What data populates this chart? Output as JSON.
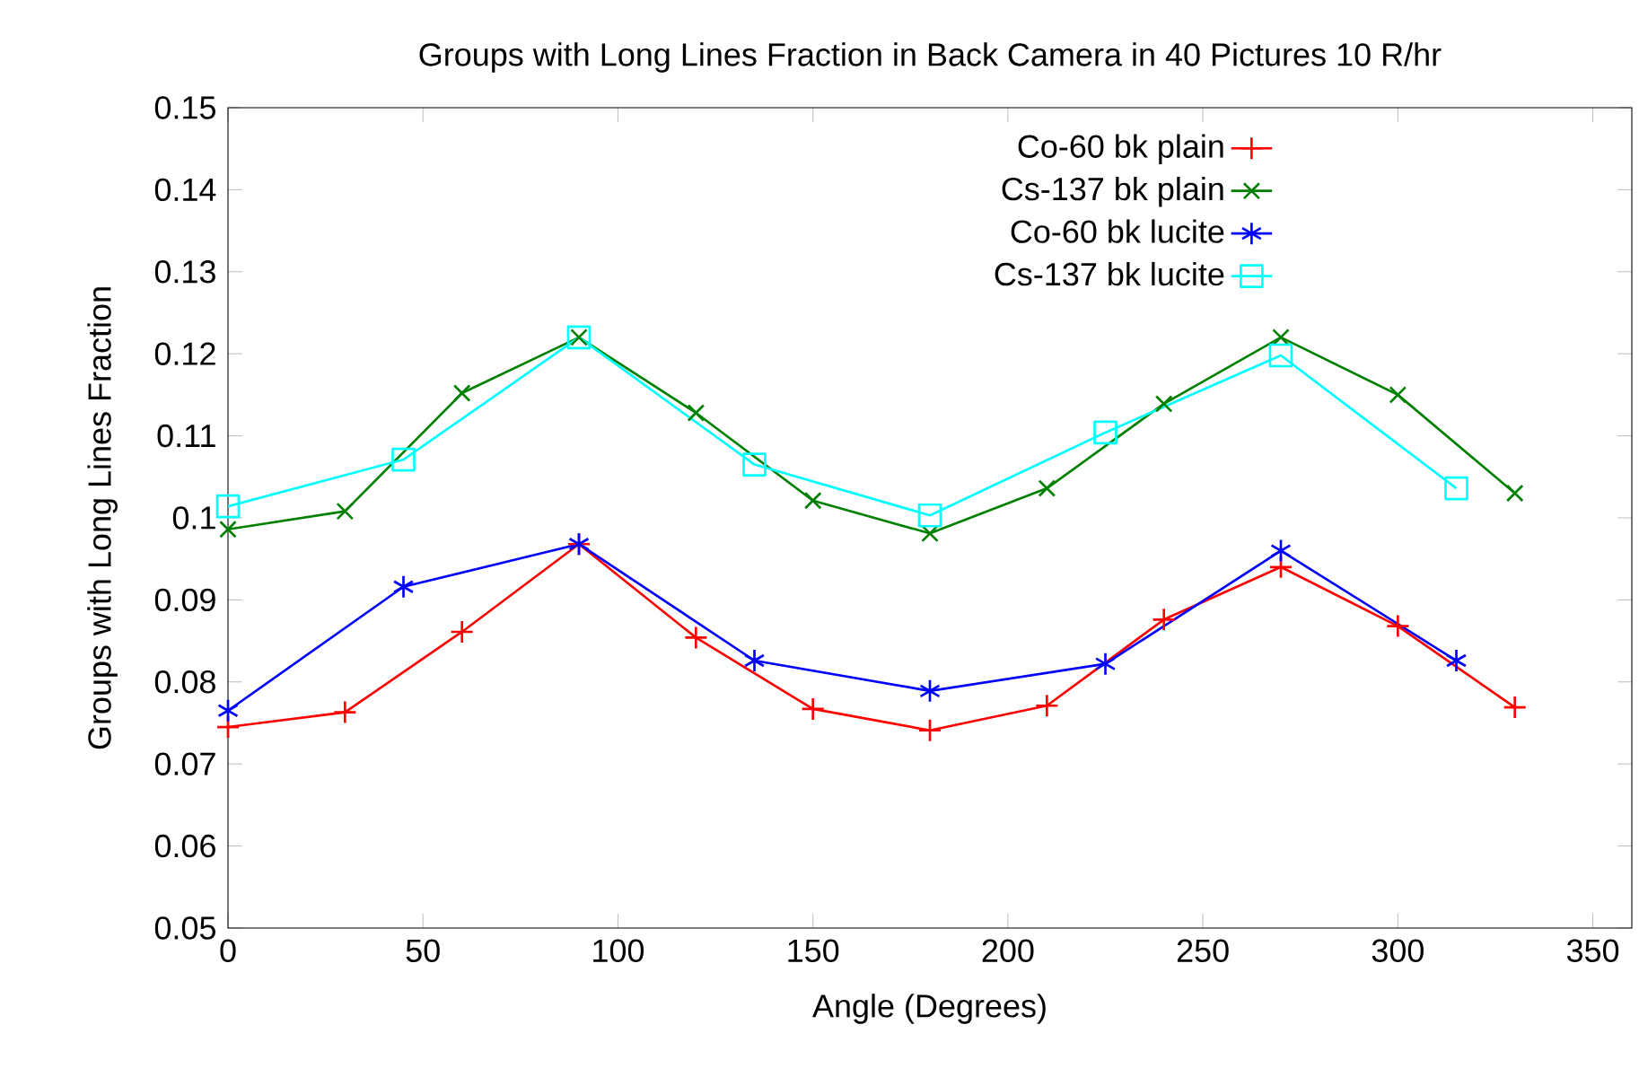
{
  "chart_data": {
    "type": "line",
    "title": "Groups with Long Lines Fraction in Back Camera in 40 Pictures 10 R/hr",
    "xlabel": "Angle (Degrees)",
    "ylabel": "Groups with Long Lines Fraction",
    "xlim": [
      0,
      360
    ],
    "ylim": [
      0.05,
      0.15
    ],
    "xticks": [
      0,
      50,
      100,
      150,
      200,
      250,
      300,
      350
    ],
    "yticks": [
      0.05,
      0.06,
      0.07,
      0.08,
      0.09,
      0.1,
      0.11,
      0.12,
      0.13,
      0.14,
      0.15
    ],
    "legend": "top right",
    "grid": false,
    "line_style": "solid",
    "series": [
      {
        "name": "Co-60 bk plain",
        "color": "#ff0000",
        "marker": "plus",
        "x": [
          0,
          30,
          60,
          90,
          120,
          150,
          180,
          210,
          240,
          270,
          300,
          330
        ],
        "values": [
          0.0745,
          0.0763,
          0.0861,
          0.0968,
          0.0854,
          0.0767,
          0.0741,
          0.0771,
          0.0876,
          0.094,
          0.0868,
          0.0769
        ]
      },
      {
        "name": "Cs-137 bk plain",
        "color": "#008000",
        "marker": "x",
        "x": [
          0,
          30,
          60,
          90,
          120,
          150,
          180,
          210,
          240,
          270,
          300,
          330
        ],
        "values": [
          0.0986,
          0.1008,
          0.1152,
          0.122,
          0.1128,
          0.1021,
          0.0981,
          0.1036,
          0.1139,
          0.122,
          0.115,
          0.103
        ]
      },
      {
        "name": "Co-60 bk lucite",
        "color": "#0000ff",
        "marker": "cross",
        "x": [
          0,
          45,
          90,
          135,
          180,
          225,
          270,
          315
        ],
        "values": [
          0.0765,
          0.0916,
          0.0968,
          0.0826,
          0.0789,
          0.0822,
          0.096,
          0.0826
        ]
      },
      {
        "name": "Cs-137 bk lucite",
        "color": "#00ffff",
        "marker": "square",
        "x": [
          0,
          45,
          90,
          135,
          180,
          225,
          270,
          315
        ],
        "values": [
          0.1014,
          0.1071,
          0.122,
          0.1065,
          0.1003,
          0.1104,
          0.1198,
          0.1036
        ]
      }
    ]
  }
}
